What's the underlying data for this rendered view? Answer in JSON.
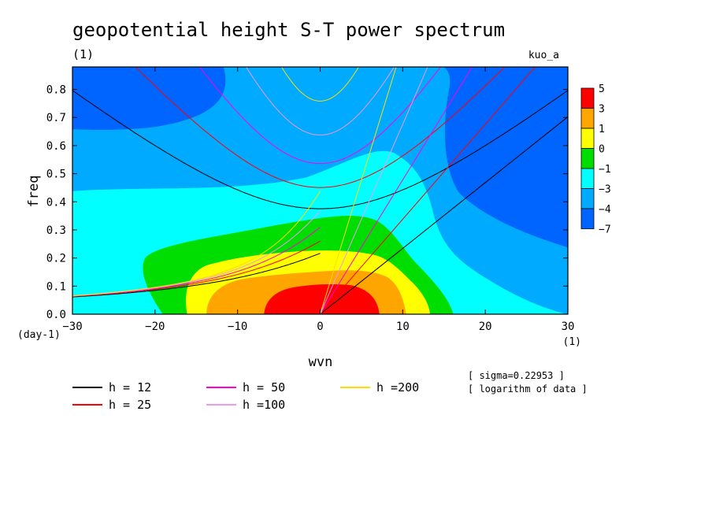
{
  "chart_data": {
    "type": "heatmap",
    "title": "geopotential height S-T power spectrum",
    "subtitle": "(1)",
    "run_label": "kuo_a",
    "xlabel": "wvn",
    "ylabel": "freq",
    "x_units": "(1)",
    "y_units": "(day-1)",
    "xlim": [
      -30,
      30
    ],
    "ylim": [
      0,
      0.88
    ],
    "x_ticks": [
      -30,
      -20,
      -10,
      0,
      10,
      20,
      30
    ],
    "x_tick_labels": [
      "−30",
      "−20",
      "−10",
      "0",
      "10",
      "20",
      "30"
    ],
    "y_ticks": [
      0,
      0.1,
      0.2,
      0.3,
      0.4,
      0.5,
      0.6,
      0.7,
      0.8
    ],
    "y_tick_labels": [
      "0.0",
      "0.1",
      "0.2",
      "0.3",
      "0.4",
      "0.5",
      "0.6",
      "0.7",
      "0.8"
    ],
    "colorbar": {
      "labels": [
        "5",
        "3",
        "1",
        "0",
        "−1",
        "−3",
        "−4",
        "−7"
      ],
      "colors": [
        "#ff0000",
        "#ffa500",
        "#ffff00",
        "#00dd00",
        "#00ffff",
        "#00aaff",
        "#0064ff"
      ]
    },
    "fill_levels": [
      {
        "level": -7,
        "color": "#0064ff"
      },
      {
        "level": -4,
        "color": "#00aaff"
      },
      {
        "level": -3,
        "color": "#00ffff"
      },
      {
        "level": -1,
        "color": "#00dd00"
      },
      {
        "level": 0,
        "color": "#ffff00"
      },
      {
        "level": 1,
        "color": "#ffa500"
      },
      {
        "level": 3,
        "color": "#ff0000"
      }
    ],
    "dispersion_curves": [
      {
        "label": "h = 12",
        "h": 12,
        "color": "#000000"
      },
      {
        "label": "h = 25",
        "h": 25,
        "color": "#ff0000"
      },
      {
        "label": "h = 50",
        "h": 50,
        "color": "#ff00dd"
      },
      {
        "label": "h =100",
        "h": 100,
        "color": "#ee99ee"
      },
      {
        "label": "h =200",
        "h": 200,
        "color": "#ffdd00"
      }
    ],
    "notes": [
      "[ sigma=0.22953 ]",
      "[ logarithm of data ]"
    ]
  }
}
